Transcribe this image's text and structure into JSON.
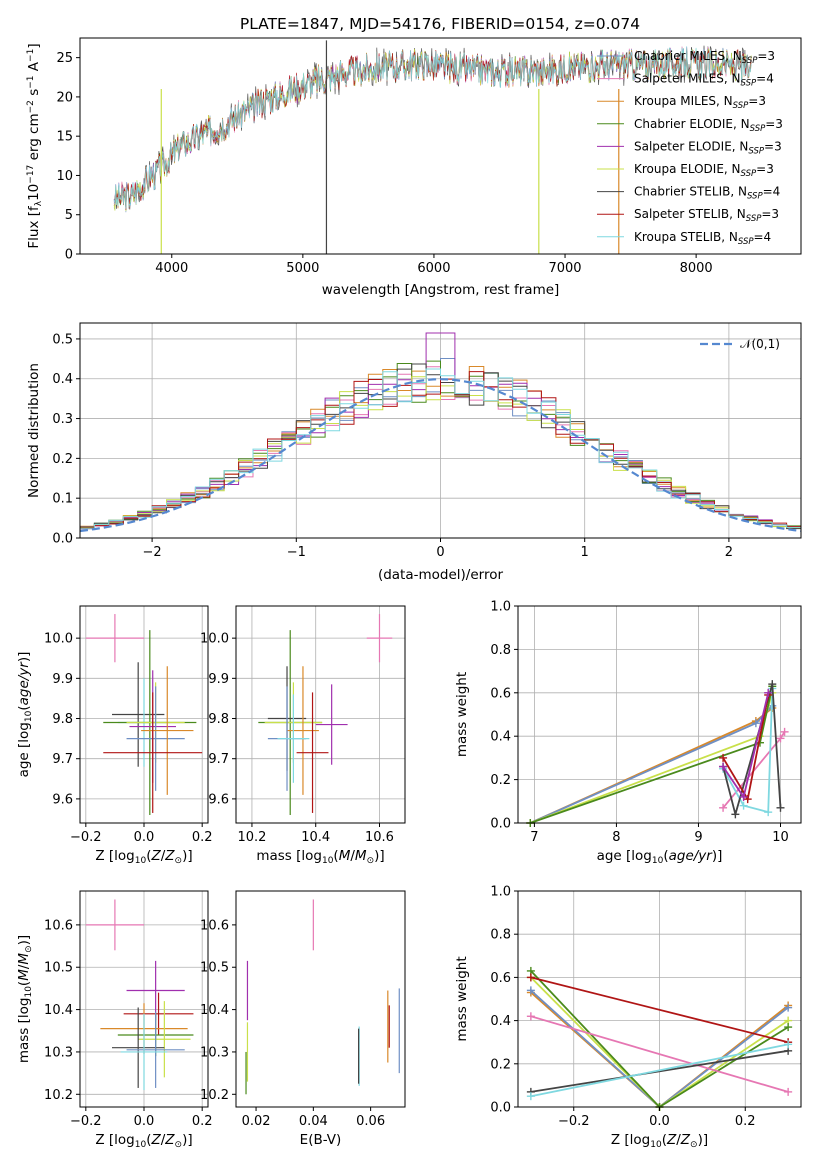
{
  "figure": {
    "title": "PLATE=1847, MJD=54176, FIBERID=0154, z=0.074"
  },
  "colors": {
    "Chabrier MILES": "#6f8fc4",
    "Salpeter MILES": "#e677b3",
    "Kroupa MILES": "#d9892a",
    "Chabrier ELODIE": "#4a8a1c",
    "Salpeter ELODIE": "#a02fae",
    "Kroupa ELODIE": "#c9e04a",
    "Chabrier STELIB": "#444444",
    "Salpeter STELIB": "#b01515",
    "Kroupa STELIB": "#7fd8e0",
    "gaussian": "#5588d0"
  },
  "chart_data": [
    {
      "id": "spectrum",
      "type": "line",
      "xlabel": "wavelength [Angstrom, rest frame]",
      "ylabel": "Flux [f_λ10^-17 erg cm^-2 s^-1 A^-1]",
      "xlim": [
        3300,
        8800
      ],
      "ylim": [
        0,
        27.5
      ],
      "xticks": [
        4000,
        5000,
        6000,
        7000,
        8000
      ],
      "yticks": [
        0,
        5,
        10,
        15,
        20,
        25
      ],
      "legend_position": "right",
      "series": [
        {
          "name": "Chabrier MILES, N_SSP=3"
        },
        {
          "name": "Salpeter MILES, N_SSP=4"
        },
        {
          "name": "Kroupa MILES, N_SSP=3"
        },
        {
          "name": "Chabrier ELODIE, N_SSP=3"
        },
        {
          "name": "Salpeter ELODIE, N_SSP=3"
        },
        {
          "name": "Kroupa ELODIE, N_SSP=3"
        },
        {
          "name": "Chabrier STELIB, N_SSP=4"
        },
        {
          "name": "Salpeter STELIB, N_SSP=3"
        },
        {
          "name": "Kroupa STELIB, N_SSP=4"
        }
      ],
      "continuum": {
        "wavelength": [
          3560,
          3700,
          3850,
          3950,
          4050,
          4200,
          4400,
          4700,
          5000,
          5300,
          5600,
          5900,
          6200,
          6500,
          6800,
          7100,
          7400,
          7600,
          7900,
          8200,
          8400
        ],
        "flux": [
          7,
          7.5,
          10,
          11.5,
          13.5,
          15,
          16.5,
          19.5,
          21.5,
          23,
          23.8,
          24.2,
          23.6,
          23.2,
          23.3,
          23.8,
          24.2,
          24,
          24.3,
          24.1,
          23.8
        ]
      }
    },
    {
      "id": "residuals",
      "type": "area",
      "xlabel": "(data-model)/error",
      "ylabel": "Normed distribution",
      "xlim": [
        -2.5,
        2.5
      ],
      "ylim": [
        0,
        0.54
      ],
      "xticks": [
        -2,
        -1,
        0,
        1,
        2
      ],
      "yticks": [
        0.0,
        0.1,
        0.2,
        0.3,
        0.4,
        0.5
      ],
      "grid": true,
      "legend_position": "top-right",
      "legend": "𝒩(0,1)",
      "bin_width": 0.1
    },
    {
      "id": "age_vs_Z",
      "type": "scatter",
      "xlabel": "Z [log10(Z/Z⊙)]",
      "ylabel": "age [log10(age/yr)]",
      "xlim": [
        -0.22,
        0.22
      ],
      "ylim": [
        9.54,
        10.08
      ],
      "xticks": [
        -0.2,
        0.0,
        0.2
      ],
      "yticks": [
        9.6,
        9.7,
        9.8,
        9.9,
        10.0
      ],
      "grid": true,
      "points": [
        {
          "series": "Salpeter MILES",
          "x": -0.1,
          "y": 10.0,
          "xerr": 0.1,
          "yerr": 0.06
        },
        {
          "series": "Chabrier STELIB",
          "x": -0.02,
          "y": 9.81,
          "xerr": 0.09,
          "yerr": 0.13
        },
        {
          "series": "Kroupa STELIB",
          "x": 0.0,
          "y": 9.79,
          "xerr": 0.09,
          "yerr": 0.11
        },
        {
          "series": "Chabrier ELODIE",
          "x": 0.02,
          "y": 9.79,
          "xerr": 0.16,
          "yerr": 0.23
        },
        {
          "series": "Kroupa ELODIE",
          "x": 0.04,
          "y": 9.79,
          "xerr": 0.1,
          "yerr": 0.1
        },
        {
          "series": "Salpeter ELODIE",
          "x": 0.03,
          "y": 9.78,
          "xerr": 0.08,
          "yerr": 0.14
        },
        {
          "series": "Chabrier MILES",
          "x": 0.04,
          "y": 9.75,
          "xerr": 0.1,
          "yerr": 0.13
        },
        {
          "series": "Kroupa MILES",
          "x": 0.08,
          "y": 9.77,
          "xerr": 0.09,
          "yerr": 0.16
        },
        {
          "series": "Salpeter STELIB",
          "x": 0.03,
          "y": 9.715,
          "xerr": 0.17,
          "yerr": 0.15
        }
      ]
    },
    {
      "id": "age_vs_mass",
      "type": "scatter",
      "xlabel": "mass [log10(M/M⊙)]",
      "ylabel": "",
      "xlim": [
        10.15,
        10.68
      ],
      "ylim": [
        9.54,
        10.08
      ],
      "xticks": [
        10.2,
        10.4,
        10.6
      ],
      "yticks": [
        9.6,
        9.7,
        9.8,
        9.9,
        10.0
      ],
      "grid": true,
      "points": [
        {
          "series": "Salpeter MILES",
          "x": 10.6,
          "y": 10.0,
          "xerr": 0.04,
          "yerr": 0.06
        },
        {
          "series": "Chabrier ELODIE",
          "x": 10.32,
          "y": 9.79,
          "xerr": 0.1,
          "yerr": 0.23
        },
        {
          "series": "Kroupa ELODIE",
          "x": 10.33,
          "y": 9.79,
          "xerr": 0.09,
          "yerr": 0.1
        },
        {
          "series": "Chabrier STELIB",
          "x": 10.31,
          "y": 9.8,
          "xerr": 0.06,
          "yerr": 0.13
        },
        {
          "series": "Salpeter ELODIE",
          "x": 10.45,
          "y": 9.785,
          "xerr": 0.05,
          "yerr": 0.1
        },
        {
          "series": "Kroupa MILES",
          "x": 10.36,
          "y": 9.77,
          "xerr": 0.05,
          "yerr": 0.16
        },
        {
          "series": "Chabrier MILES",
          "x": 10.31,
          "y": 9.75,
          "xerr": 0.06,
          "yerr": 0.13
        },
        {
          "series": "Kroupa STELIB",
          "x": 10.33,
          "y": 9.75,
          "xerr": 0.05,
          "yerr": 0.11
        },
        {
          "series": "Salpeter STELIB",
          "x": 10.39,
          "y": 9.715,
          "xerr": 0.05,
          "yerr": 0.15
        }
      ]
    },
    {
      "id": "weight_vs_age",
      "type": "line",
      "xlabel": "age [log10(age/yr)]",
      "ylabel": "mass weight",
      "xlim": [
        6.8,
        10.25
      ],
      "ylim": [
        0,
        1.0
      ],
      "xticks": [
        7,
        8,
        9,
        10
      ],
      "yticks": [
        0.0,
        0.2,
        0.4,
        0.6,
        0.8,
        1.0
      ],
      "grid": true,
      "series": [
        {
          "series": "Kroupa MILES",
          "x": [
            6.95,
            9.7,
            9.9
          ],
          "y": [
            0.0,
            0.47,
            0.53
          ]
        },
        {
          "series": "Chabrier MILES",
          "x": [
            6.95,
            9.7,
            9.9
          ],
          "y": [
            0.0,
            0.46,
            0.54
          ]
        },
        {
          "series": "Kroupa ELODIE",
          "x": [
            6.95,
            9.75,
            9.9
          ],
          "y": [
            0.0,
            0.4,
            0.6
          ]
        },
        {
          "series": "Chabrier ELODIE",
          "x": [
            6.95,
            9.75,
            9.9
          ],
          "y": [
            0.0,
            0.37,
            0.63
          ]
        },
        {
          "series": "Salpeter MILES",
          "x": [
            9.3,
            10.0,
            10.05
          ],
          "y": [
            0.07,
            0.39,
            0.42
          ]
        },
        {
          "series": "Kroupa STELIB",
          "x": [
            9.3,
            9.55,
            9.85,
            9.9
          ],
          "y": [
            0.25,
            0.08,
            0.05,
            0.62
          ]
        },
        {
          "series": "Chabrier STELIB",
          "x": [
            9.3,
            9.45,
            9.9,
            10.0
          ],
          "y": [
            0.26,
            0.04,
            0.64,
            0.07
          ]
        },
        {
          "series": "Salpeter STELIB",
          "x": [
            9.3,
            9.6,
            9.85
          ],
          "y": [
            0.3,
            0.11,
            0.59
          ]
        },
        {
          "series": "Salpeter ELODIE",
          "x": [
            9.3,
            9.55,
            9.85
          ],
          "y": [
            0.26,
            0.12,
            0.6
          ]
        }
      ]
    },
    {
      "id": "mass_vs_Z",
      "type": "scatter",
      "xlabel": "Z [log10(Z/Z⊙)]",
      "ylabel": "mass [log10(M/M⊙)]",
      "xlim": [
        -0.22,
        0.22
      ],
      "ylim": [
        10.17,
        10.68
      ],
      "xticks": [
        -0.2,
        0.0,
        0.2
      ],
      "yticks": [
        10.2,
        10.3,
        10.4,
        10.5,
        10.6
      ],
      "grid": true,
      "points": [
        {
          "series": "Salpeter MILES",
          "x": -0.1,
          "y": 10.6,
          "xerr": 0.1,
          "yerr": 0.06
        },
        {
          "series": "Salpeter ELODIE",
          "x": 0.04,
          "y": 10.445,
          "xerr": 0.1,
          "yerr": 0.07
        },
        {
          "series": "Salpeter STELIB",
          "x": 0.05,
          "y": 10.39,
          "xerr": 0.12,
          "yerr": 0.05
        },
        {
          "series": "Kroupa MILES",
          "x": 0.0,
          "y": 10.355,
          "xerr": 0.15,
          "yerr": 0.06
        },
        {
          "series": "Chabrier ELODIE",
          "x": 0.04,
          "y": 10.34,
          "xerr": 0.13,
          "yerr": 0.05
        },
        {
          "series": "Kroupa ELODIE",
          "x": 0.07,
          "y": 10.33,
          "xerr": 0.09,
          "yerr": 0.09
        },
        {
          "series": "Chabrier STELIB",
          "x": -0.02,
          "y": 10.31,
          "xerr": 0.09,
          "yerr": 0.095
        },
        {
          "series": "Chabrier MILES",
          "x": 0.04,
          "y": 10.305,
          "xerr": 0.1,
          "yerr": 0.09
        },
        {
          "series": "Kroupa STELIB",
          "x": 0.0,
          "y": 10.3,
          "xerr": 0.08,
          "yerr": 0.09
        }
      ]
    },
    {
      "id": "mass_vs_EBV",
      "type": "scatter",
      "xlabel": "E(B-V)",
      "ylabel": "",
      "xlim": [
        0.013,
        0.072
      ],
      "ylim": [
        10.17,
        10.68
      ],
      "xticks": [
        0.02,
        0.04,
        0.06
      ],
      "yticks": [
        10.2,
        10.3,
        10.4,
        10.5,
        10.6
      ],
      "grid": false,
      "points": [
        {
          "series": "Salpeter MILES",
          "x": 0.04,
          "y": 10.6,
          "yerr": 0.06
        },
        {
          "series": "Salpeter ELODIE",
          "x": 0.017,
          "y": 10.445,
          "yerr": 0.07
        },
        {
          "series": "Kroupa ELODIE",
          "x": 0.017,
          "y": 10.3,
          "yerr": 0.07
        },
        {
          "series": "Chabrier ELODIE",
          "x": 0.0165,
          "y": 10.25,
          "yerr": 0.05
        },
        {
          "series": "Kroupa STELIB",
          "x": 0.056,
          "y": 10.29,
          "yerr": 0.07
        },
        {
          "series": "Chabrier STELIB",
          "x": 0.0558,
          "y": 10.29,
          "yerr": 0.065
        },
        {
          "series": "Kroupa MILES",
          "x": 0.066,
          "y": 10.36,
          "yerr": 0.085
        },
        {
          "series": "Salpeter STELIB",
          "x": 0.0665,
          "y": 10.36,
          "yerr": 0.05
        },
        {
          "series": "Chabrier MILES",
          "x": 0.07,
          "y": 10.35,
          "yerr": 0.1
        }
      ]
    },
    {
      "id": "weight_vs_Z",
      "type": "line",
      "xlabel": "Z [log10(Z/Z⊙)]",
      "ylabel": "mass weight",
      "xlim": [
        -0.33,
        0.33
      ],
      "ylim": [
        0,
        1.0
      ],
      "xticks": [
        -0.2,
        0.0,
        0.2
      ],
      "yticks": [
        0.0,
        0.2,
        0.4,
        0.6,
        0.8,
        1.0
      ],
      "grid": true,
      "series": [
        {
          "series": "Kroupa MILES",
          "x": [
            -0.3,
            0.0,
            0.3
          ],
          "y": [
            0.53,
            0.0,
            0.47
          ]
        },
        {
          "series": "Chabrier MILES",
          "x": [
            -0.3,
            0.0,
            0.3
          ],
          "y": [
            0.54,
            0.0,
            0.46
          ]
        },
        {
          "series": "Kroupa ELODIE",
          "x": [
            -0.3,
            0.0,
            0.3
          ],
          "y": [
            0.6,
            0.0,
            0.4
          ]
        },
        {
          "series": "Chabrier ELODIE",
          "x": [
            -0.3,
            0.0,
            0.3
          ],
          "y": [
            0.63,
            0.0,
            0.37
          ]
        },
        {
          "series": "Salpeter STELIB",
          "x": [
            -0.3,
            0.3
          ],
          "y": [
            0.6,
            0.3
          ]
        },
        {
          "series": "Salpeter MILES",
          "x": [
            -0.3,
            0.3
          ],
          "y": [
            0.42,
            0.07
          ]
        },
        {
          "series": "Chabrier STELIB",
          "x": [
            -0.3,
            0.3
          ],
          "y": [
            0.07,
            0.26
          ]
        },
        {
          "series": "Kroupa STELIB",
          "x": [
            -0.3,
            0.3
          ],
          "y": [
            0.05,
            0.29
          ]
        }
      ]
    }
  ]
}
